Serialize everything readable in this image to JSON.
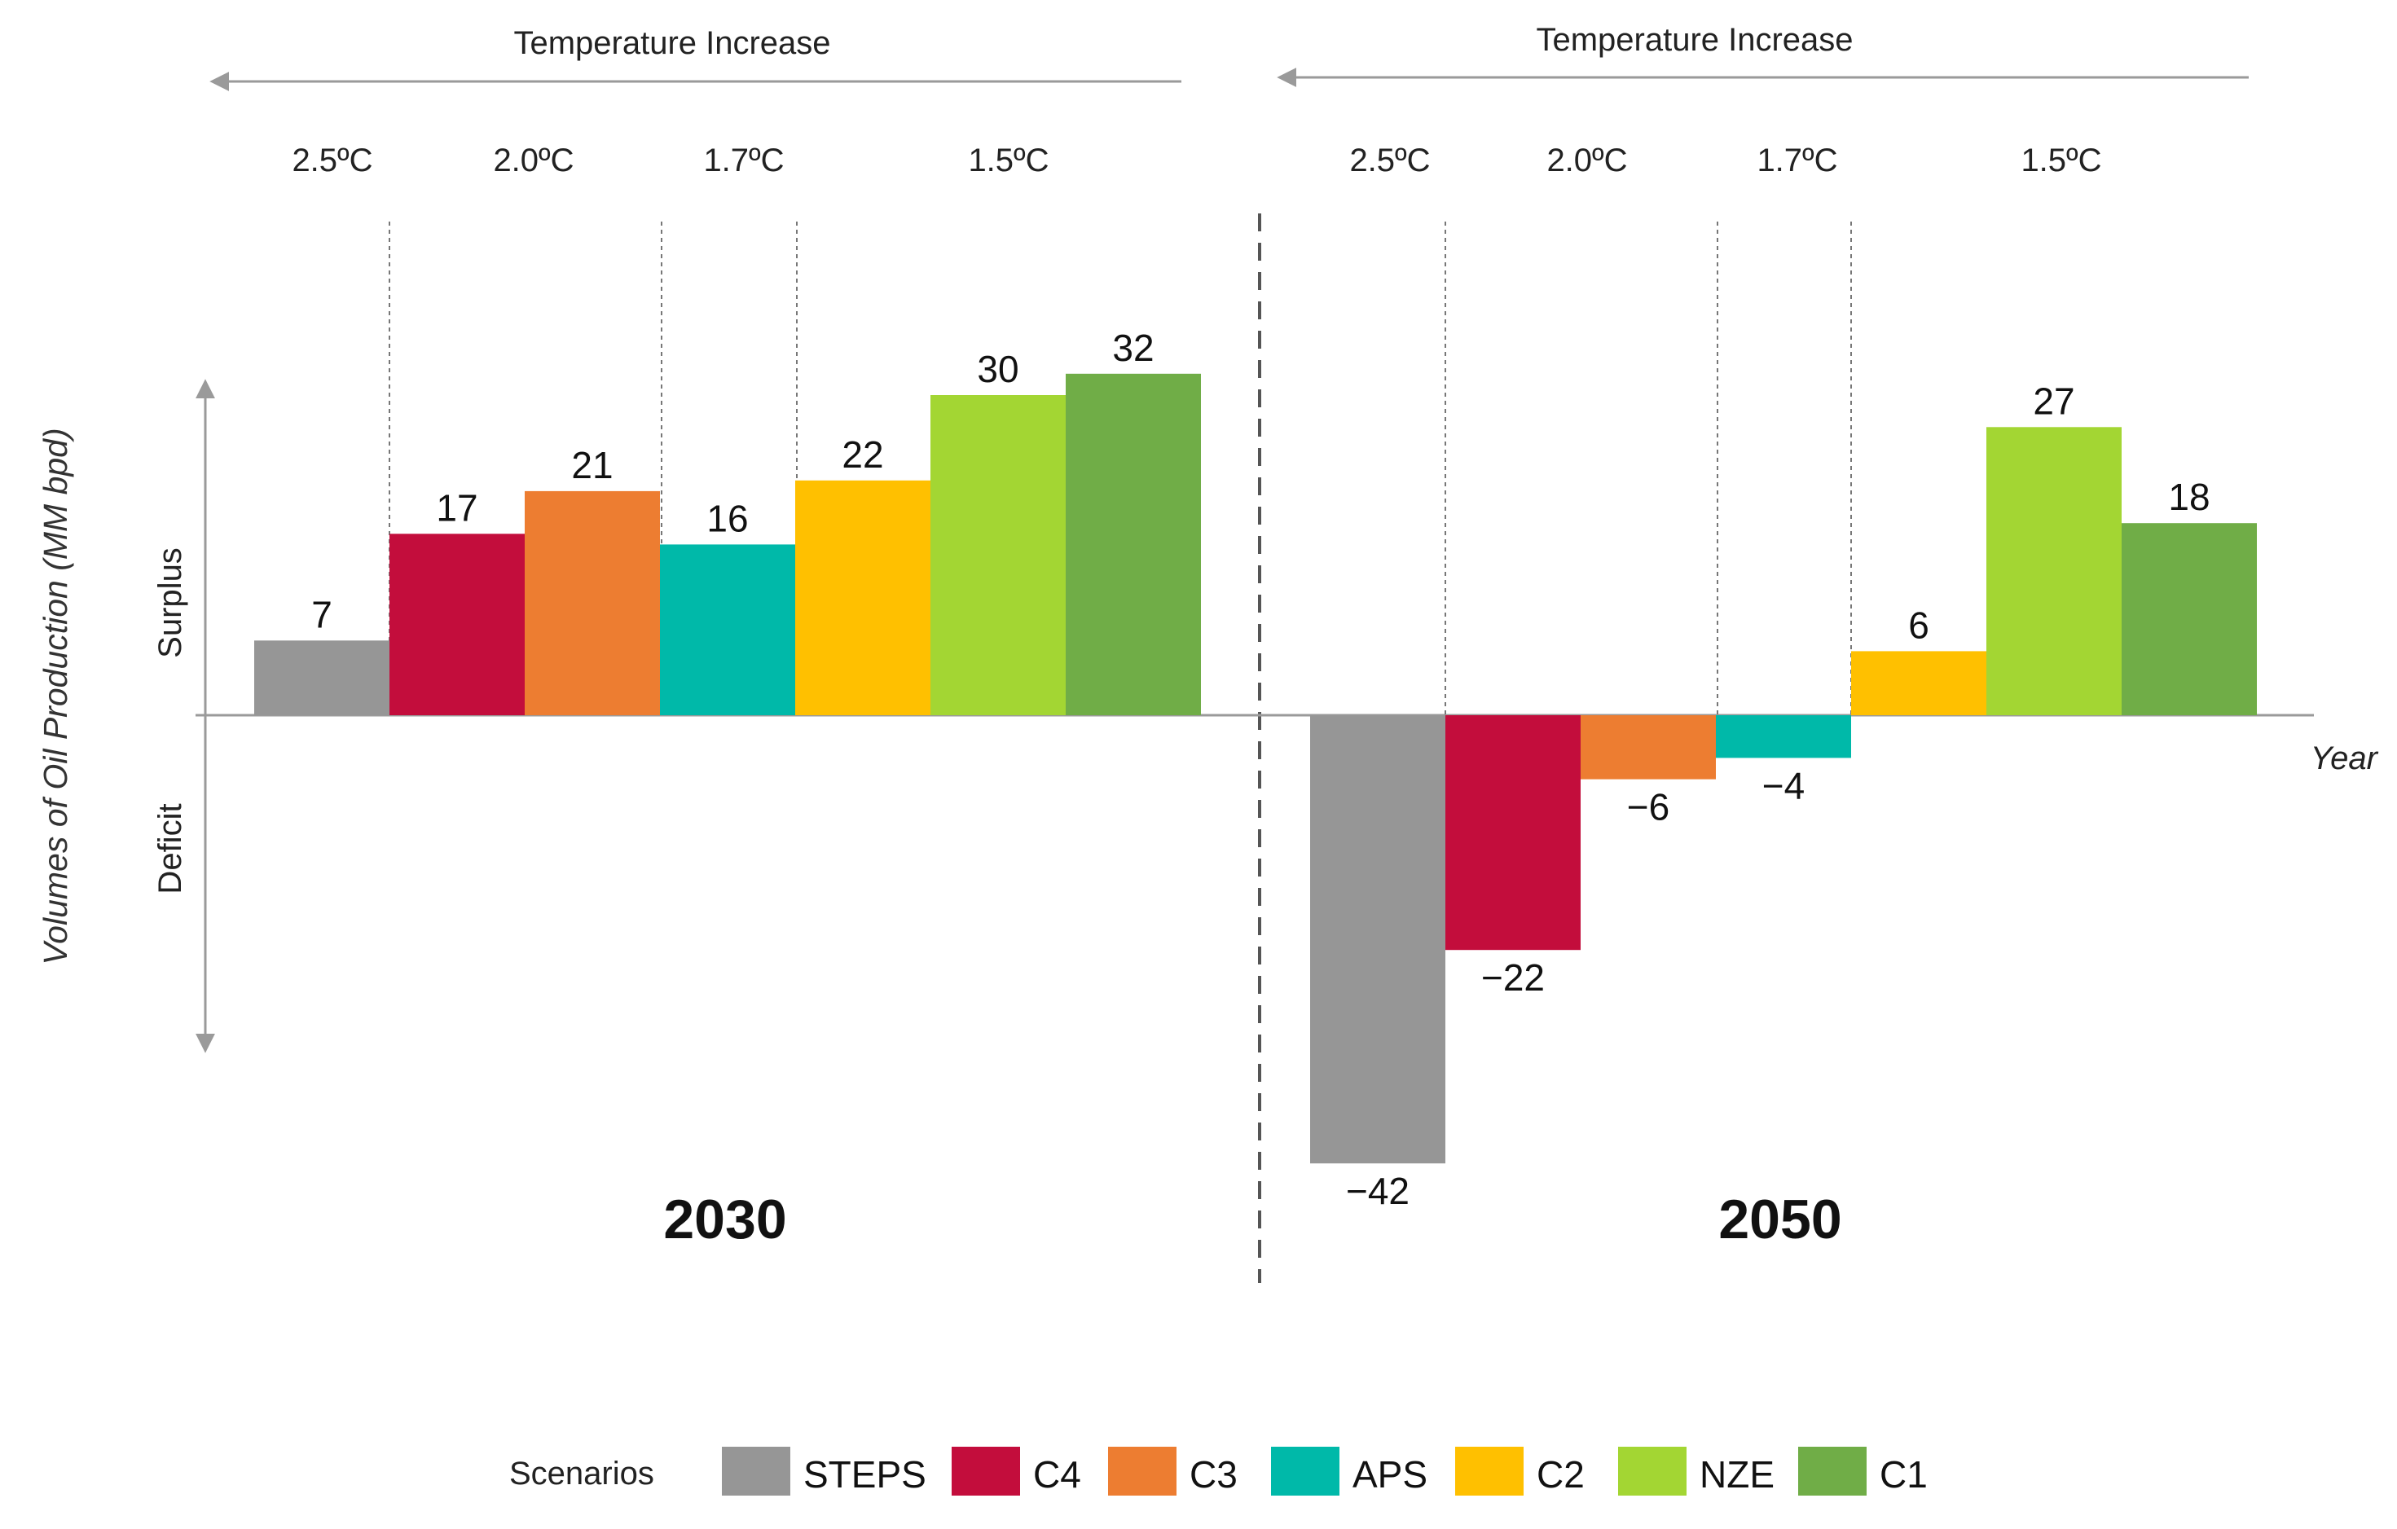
{
  "chart_data": {
    "type": "bar",
    "y_axis_label": "Volumes of Oil Production (MM bpd)",
    "x_axis_label": "Year",
    "surplus_label": "Surplus",
    "deficit_label": "Deficit",
    "ylim": [
      -55,
      40
    ],
    "scenarios": [
      "STEPS",
      "C4",
      "C3",
      "APS",
      "C2",
      "NZE",
      "C1"
    ],
    "colors": {
      "STEPS": "#969696",
      "C4": "#C30D3C",
      "C3": "#ED7D31",
      "APS": "#00B9A9",
      "C2": "#FFC000",
      "NZE": "#A3D633",
      "C1": "#70AD47"
    },
    "groups": [
      {
        "year": "2030",
        "temperature_header": "Temperature Increase",
        "temperature_bands": [
          {
            "label": "2.5ºC",
            "scenarios": [
              "STEPS"
            ]
          },
          {
            "label": "2.0ºC",
            "scenarios": [
              "C4",
              "C3"
            ]
          },
          {
            "label": "1.7ºC",
            "scenarios": [
              "APS"
            ]
          },
          {
            "label": "1.5ºC",
            "scenarios": [
              "C2",
              "NZE",
              "C1"
            ]
          }
        ],
        "values": [
          7,
          17,
          21,
          16,
          22,
          30,
          32
        ],
        "value_labels": [
          "7",
          "17",
          "21",
          "16",
          "22",
          "30",
          "32"
        ]
      },
      {
        "year": "2050",
        "temperature_header": "Temperature Increase",
        "temperature_bands": [
          {
            "label": "2.5ºC",
            "scenarios": [
              "STEPS"
            ]
          },
          {
            "label": "2.0ºC",
            "scenarios": [
              "C4",
              "C3"
            ]
          },
          {
            "label": "1.7ºC",
            "scenarios": [
              "APS"
            ]
          },
          {
            "label": "1.5ºC",
            "scenarios": [
              "C2",
              "NZE",
              "C1"
            ]
          }
        ],
        "values": [
          -42,
          -22,
          -6,
          -4,
          6,
          27,
          18
        ],
        "value_labels": [
          "−42",
          "−22",
          "−6",
          "−4",
          "6",
          "27",
          "18"
        ]
      }
    ],
    "legend": {
      "title": "Scenarios",
      "entries": [
        "STEPS",
        "C4",
        "C3",
        "APS",
        "C2",
        "NZE",
        "C1"
      ],
      "position": "bottom-center"
    }
  }
}
